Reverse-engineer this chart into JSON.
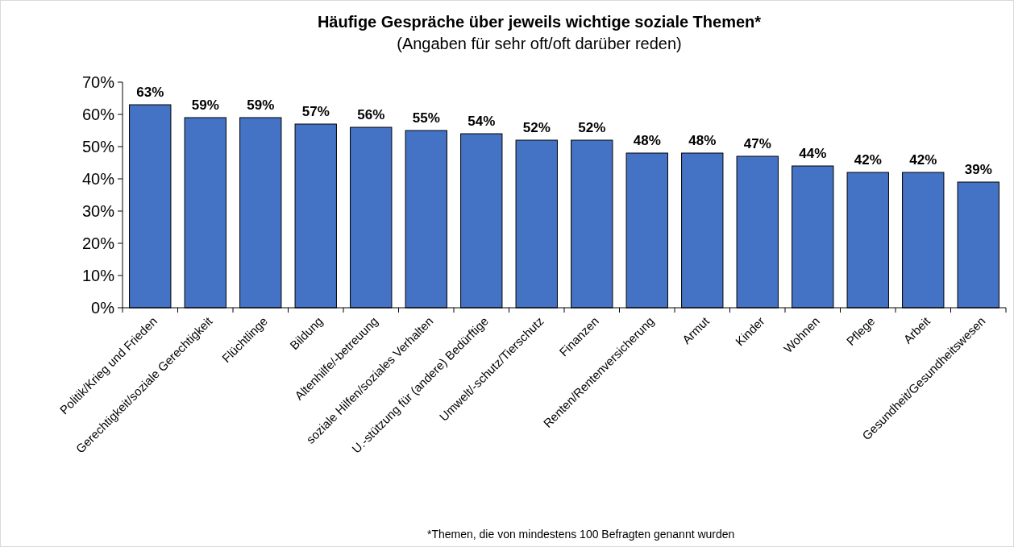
{
  "chart_data": {
    "type": "bar",
    "title": "Häufige Gespräche über jeweils wichtige soziale Themen*",
    "subtitle": "(Angaben für sehr oft/oft darüber reden)",
    "categories": [
      "Politik/Krieg und Frieden",
      "Gerechtigkeit/soziale Gerechtigkeit",
      "Flüchtlinge",
      "Bildung",
      "Altenhilfe/-betreuung",
      "soziale Hilfen/soziales Verhalten",
      "U.-stützung für (andere) Bedürftige",
      "Umwelt/-schutz/Tierschutz",
      "Finanzen",
      "Renten/Rentenversicherung",
      "Armut",
      "Kinder",
      "Wohnen",
      "Pflege",
      "Arbeit",
      "Gesundheit/Gesundheitswesen"
    ],
    "values": [
      63,
      59,
      59,
      57,
      56,
      55,
      54,
      52,
      52,
      48,
      48,
      47,
      44,
      42,
      42,
      39
    ],
    "color": "#4472c4",
    "value_labels": [
      "63%",
      "59%",
      "59%",
      "57%",
      "56%",
      "55%",
      "54%",
      "52%",
      "52%",
      "48%",
      "48%",
      "47%",
      "44%",
      "42%",
      "42%",
      "39%"
    ],
    "ylim": [
      0,
      70
    ],
    "yticks": [
      {
        "value": 0,
        "label": "0%"
      },
      {
        "value": 10,
        "label": "10%"
      },
      {
        "value": 20,
        "label": "20%"
      },
      {
        "value": 30,
        "label": "30%"
      },
      {
        "value": 40,
        "label": "40%"
      },
      {
        "value": 50,
        "label": "50%"
      },
      {
        "value": 60,
        "label": "60%"
      },
      {
        "value": 70,
        "label": "70%"
      }
    ],
    "annotations": [
      "*Themen, die von mindestens 100 Befragten genannt wurden"
    ]
  }
}
